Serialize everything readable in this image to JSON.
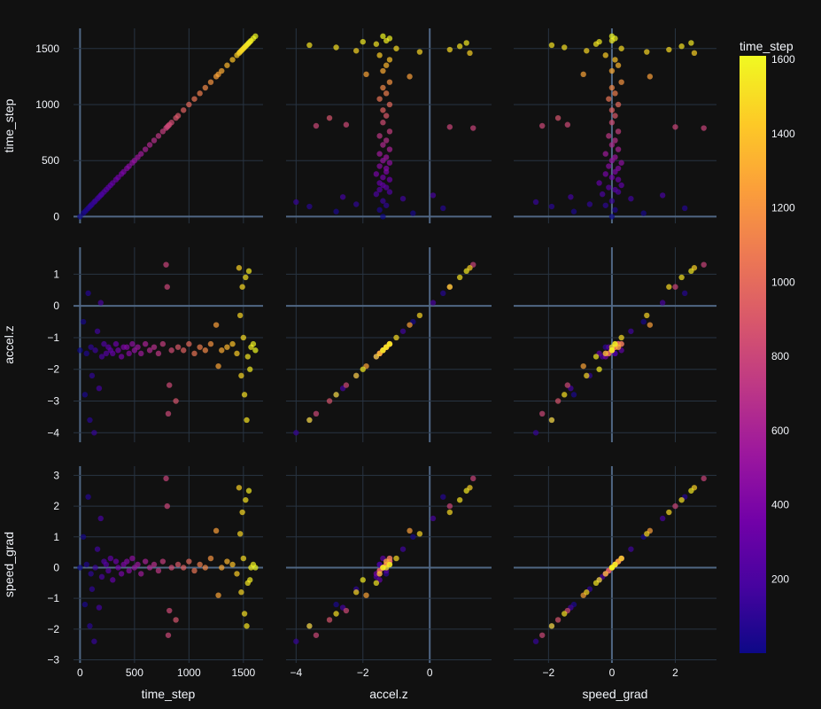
{
  "chart_data": {
    "type": "scatter",
    "kind": "scatter-matrix",
    "dimensions": [
      "time_step",
      "accel.z",
      "speed_grad"
    ],
    "axis_ranges": {
      "time_step": [
        -60,
        1680
      ],
      "accel.z": [
        -4.3,
        1.85
      ],
      "speed_grad": [
        -3.1,
        3.3
      ]
    },
    "x_ticks": {
      "time_step": [
        0,
        500,
        1000,
        1500
      ],
      "accel.z": [
        -4,
        -2,
        0
      ],
      "speed_grad": [
        -2,
        0,
        2
      ]
    },
    "y_ticks": {
      "time_step": [
        0,
        500,
        1000,
        1500
      ],
      "accel.z": [
        -4,
        -3,
        -2,
        -1,
        0,
        1
      ],
      "speed_grad": [
        -3,
        -2,
        -1,
        0,
        1,
        2,
        3
      ]
    },
    "color_by": "time_step",
    "colorscale": "plasma",
    "colorbar": {
      "title": "time_step",
      "range": [
        0,
        1610
      ],
      "ticks": [
        200,
        400,
        600,
        800,
        1000,
        1200,
        1400,
        1600
      ]
    },
    "grid": true,
    "background": "#111111",
    "text_color": "#f2f5fa",
    "grid_color": "#283442",
    "zeroline_color": "#506784",
    "points": [
      {
        "time_step": 0,
        "accel.z": -1.4,
        "speed_grad": 0.0
      },
      {
        "time_step": 30,
        "accel.z": -0.5,
        "speed_grad": 1.0
      },
      {
        "time_step": 45,
        "accel.z": -2.8,
        "speed_grad": -1.2
      },
      {
        "time_step": 60,
        "accel.z": -1.5,
        "speed_grad": 0.1
      },
      {
        "time_step": 75,
        "accel.z": 0.4,
        "speed_grad": 2.3
      },
      {
        "time_step": 90,
        "accel.z": -3.6,
        "speed_grad": -1.9
      },
      {
        "time_step": 100,
        "accel.z": -1.3,
        "speed_grad": -0.2
      },
      {
        "time_step": 110,
        "accel.z": -2.2,
        "speed_grad": -0.7
      },
      {
        "time_step": 130,
        "accel.z": -4.0,
        "speed_grad": -2.4
      },
      {
        "time_step": 140,
        "accel.z": -1.4,
        "speed_grad": 0.0
      },
      {
        "time_step": 160,
        "accel.z": -0.8,
        "speed_grad": 0.6
      },
      {
        "time_step": 175,
        "accel.z": -2.6,
        "speed_grad": -1.3
      },
      {
        "time_step": 190,
        "accel.z": 0.1,
        "speed_grad": 1.6
      },
      {
        "time_step": 200,
        "accel.z": -1.6,
        "speed_grad": -0.3
      },
      {
        "time_step": 220,
        "accel.z": -1.2,
        "speed_grad": 0.2
      },
      {
        "time_step": 240,
        "accel.z": -1.5,
        "speed_grad": 0.1
      },
      {
        "time_step": 260,
        "accel.z": -1.3,
        "speed_grad": -0.1
      },
      {
        "time_step": 280,
        "accel.z": -1.4,
        "speed_grad": 0.3
      },
      {
        "time_step": 300,
        "accel.z": -1.5,
        "speed_grad": -0.4
      },
      {
        "time_step": 330,
        "accel.z": -1.2,
        "speed_grad": 0.2
      },
      {
        "time_step": 350,
        "accel.z": -1.4,
        "speed_grad": 0.0
      },
      {
        "time_step": 380,
        "accel.z": -1.6,
        "speed_grad": -0.2
      },
      {
        "time_step": 400,
        "accel.z": -1.3,
        "speed_grad": 0.1
      },
      {
        "time_step": 430,
        "accel.z": -1.3,
        "speed_grad": 0.2
      },
      {
        "time_step": 450,
        "accel.z": -1.5,
        "speed_grad": -0.1
      },
      {
        "time_step": 480,
        "accel.z": -1.2,
        "speed_grad": 0.3
      },
      {
        "time_step": 500,
        "accel.z": -1.4,
        "speed_grad": 0.0
      },
      {
        "time_step": 530,
        "accel.z": -1.3,
        "speed_grad": 0.1
      },
      {
        "time_step": 560,
        "accel.z": -1.5,
        "speed_grad": -0.2
      },
      {
        "time_step": 600,
        "accel.z": -1.2,
        "speed_grad": 0.2
      },
      {
        "time_step": 640,
        "accel.z": -1.4,
        "speed_grad": 0.0
      },
      {
        "time_step": 680,
        "accel.z": -1.3,
        "speed_grad": 0.1
      },
      {
        "time_step": 720,
        "accel.z": -1.5,
        "speed_grad": -0.1
      },
      {
        "time_step": 760,
        "accel.z": -1.2,
        "speed_grad": 0.2
      },
      {
        "time_step": 790,
        "accel.z": 1.3,
        "speed_grad": 2.9
      },
      {
        "time_step": 800,
        "accel.z": 0.6,
        "speed_grad": 2.0
      },
      {
        "time_step": 810,
        "accel.z": -3.4,
        "speed_grad": -2.2
      },
      {
        "time_step": 820,
        "accel.z": -2.5,
        "speed_grad": -1.4
      },
      {
        "time_step": 840,
        "accel.z": -1.4,
        "speed_grad": 0.0
      },
      {
        "time_step": 880,
        "accel.z": -3.0,
        "speed_grad": -1.7
      },
      {
        "time_step": 900,
        "accel.z": -1.3,
        "speed_grad": 0.1
      },
      {
        "time_step": 950,
        "accel.z": -1.4,
        "speed_grad": 0.0
      },
      {
        "time_step": 1000,
        "accel.z": -1.2,
        "speed_grad": 0.2
      },
      {
        "time_step": 1050,
        "accel.z": -1.5,
        "speed_grad": -0.1
      },
      {
        "time_step": 1100,
        "accel.z": -1.3,
        "speed_grad": 0.1
      },
      {
        "time_step": 1150,
        "accel.z": -1.4,
        "speed_grad": 0.0
      },
      {
        "time_step": 1200,
        "accel.z": -1.2,
        "speed_grad": 0.3
      },
      {
        "time_step": 1250,
        "accel.z": -0.6,
        "speed_grad": 1.2
      },
      {
        "time_step": 1270,
        "accel.z": -1.9,
        "speed_grad": -0.9
      },
      {
        "time_step": 1300,
        "accel.z": -1.4,
        "speed_grad": 0.0
      },
      {
        "time_step": 1350,
        "accel.z": -1.3,
        "speed_grad": 0.2
      },
      {
        "time_step": 1400,
        "accel.z": -1.2,
        "speed_grad": 0.1
      },
      {
        "time_step": 1440,
        "accel.z": -1.5,
        "speed_grad": -0.2
      },
      {
        "time_step": 1460,
        "accel.z": 1.2,
        "speed_grad": 2.6
      },
      {
        "time_step": 1470,
        "accel.z": -0.3,
        "speed_grad": 1.1
      },
      {
        "time_step": 1480,
        "accel.z": -2.2,
        "speed_grad": -0.8
      },
      {
        "time_step": 1490,
        "accel.z": 0.6,
        "speed_grad": 1.8
      },
      {
        "time_step": 1500,
        "accel.z": -1.0,
        "speed_grad": 0.3
      },
      {
        "time_step": 1510,
        "accel.z": -2.8,
        "speed_grad": -1.5
      },
      {
        "time_step": 1520,
        "accel.z": 0.9,
        "speed_grad": 2.2
      },
      {
        "time_step": 1530,
        "accel.z": -3.6,
        "speed_grad": -1.9
      },
      {
        "time_step": 1540,
        "accel.z": -1.6,
        "speed_grad": -0.5
      },
      {
        "time_step": 1550,
        "accel.z": 1.1,
        "speed_grad": 2.5
      },
      {
        "time_step": 1560,
        "accel.z": -2.0,
        "speed_grad": -0.4
      },
      {
        "time_step": 1570,
        "accel.z": -1.3,
        "speed_grad": 0.0
      },
      {
        "time_step": 1590,
        "accel.z": -1.2,
        "speed_grad": 0.1
      },
      {
        "time_step": 1610,
        "accel.z": -1.4,
        "speed_grad": 0.0
      }
    ]
  }
}
